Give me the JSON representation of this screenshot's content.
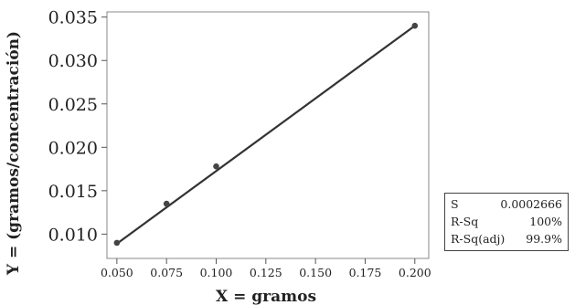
{
  "chart_data": {
    "type": "scatter",
    "title": "",
    "xlabel": "X = gramos",
    "ylabel": "Y = (gramos/concentración)",
    "xlim": [
      0.045,
      0.207
    ],
    "ylim": [
      0.0072,
      0.0356
    ],
    "x_ticks": [
      0.05,
      0.075,
      0.1,
      0.125,
      0.15,
      0.175,
      0.2
    ],
    "x_tick_labels": [
      "0.050",
      "0.075",
      "0.100",
      "0.125",
      "0.150",
      "0.175",
      "0.200"
    ],
    "y_ticks": [
      0.01,
      0.015,
      0.02,
      0.025,
      0.03,
      0.035
    ],
    "y_tick_labels": [
      "0.010",
      "0.015",
      "0.020",
      "0.025",
      "0.030",
      "0.035"
    ],
    "points": [
      {
        "x": 0.05,
        "y": 0.009
      },
      {
        "x": 0.075,
        "y": 0.0135
      },
      {
        "x": 0.1,
        "y": 0.0178
      },
      {
        "x": 0.2,
        "y": 0.034
      }
    ],
    "fit_line": {
      "x": [
        0.05,
        0.2
      ],
      "y": [
        0.0089,
        0.034
      ]
    },
    "grid": false,
    "colors": {
      "points": "#444444",
      "line": "#333333",
      "frame": "#888888"
    }
  },
  "stats": [
    {
      "label": "S",
      "value": "0.0002666"
    },
    {
      "label": "R-Sq",
      "value": "100%"
    },
    {
      "label": "R-Sq(adj)",
      "value": "99.9%"
    }
  ]
}
